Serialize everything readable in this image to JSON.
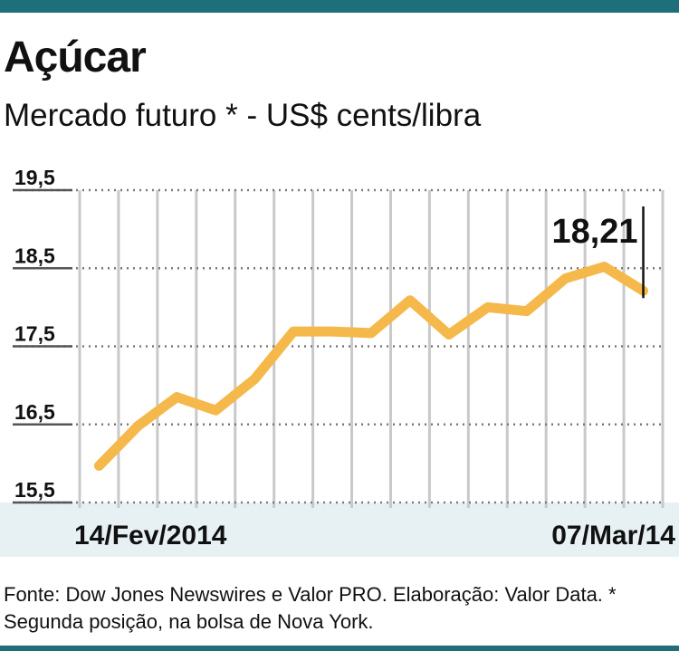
{
  "header": {
    "title": "Açúcar",
    "subtitle": "Mercado futuro * - US$ cents/libra"
  },
  "footer": {
    "source": "Fonte: Dow Jones Newswires e Valor PRO. Elaboração: Valor Data. * Segunda posição, na bolsa de Nova York."
  },
  "colors": {
    "frame": "#1f6f7a",
    "line": "#f5b84a",
    "grid": "#c9c9c9",
    "band": "#e7f1f4"
  },
  "chart_data": {
    "type": "line",
    "title": "Açúcar",
    "subtitle": "Mercado futuro * - US$ cents/libra",
    "ylim": [
      15.5,
      19.5
    ],
    "yticks": [
      "19,5",
      "18,5",
      "17,5",
      "16,5",
      "15,5"
    ],
    "x_labels": {
      "start": "14/Fev/2014",
      "end": "07/Mar/14"
    },
    "values": [
      15.97,
      16.48,
      16.85,
      16.68,
      17.08,
      17.69,
      17.69,
      17.67,
      18.09,
      17.65,
      18.0,
      17.95,
      18.37,
      18.52,
      18.21
    ],
    "grid": true,
    "annotation": {
      "label": "18,21",
      "index": 14
    }
  }
}
